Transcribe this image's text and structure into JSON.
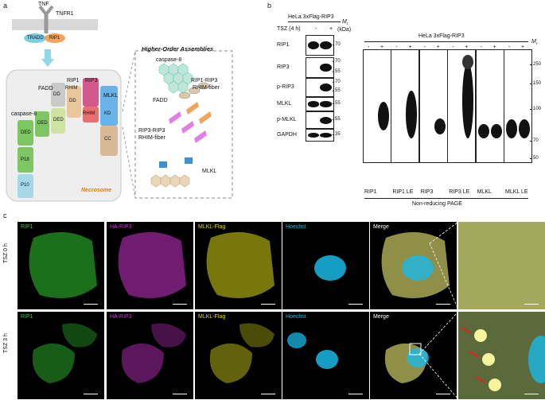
{
  "panels": {
    "a": "a",
    "b": "b",
    "c": "c"
  },
  "panel_a": {
    "top": {
      "tnf": "TNF",
      "tnfr1": "TNFR1",
      "tradd": "TRADD",
      "rip1": "RIP1"
    },
    "necrosome": {
      "fadd": "FADD",
      "rip1": "RIP1",
      "rip3": "RIP3",
      "mlkl": "MLKL",
      "caspase8": "caspase-8",
      "ded": "DED",
      "p18": "P18",
      "p10": "P10",
      "dd": "DD",
      "rhim": "RHIM",
      "kd": "KD",
      "cc": "CC",
      "title": "Necrosome"
    },
    "assemblies": {
      "title": "Higher-Order Assemblies",
      "caspase8": "caspase-8",
      "fadd": "FADD",
      "rip1_rip3": "RIP1-RIP3",
      "rhim_fiber1": "RHIM-fiber",
      "rip3_rip3": "RIP3-RIP3",
      "rhim_fiber2": "RHIM-fiber",
      "mlkl": "MLKL"
    }
  },
  "panel_b": {
    "left_title": "HeLa 3xFlag-RIP3",
    "right_title": "HeLa 3xFlag-RIP3",
    "tsz": "TSZ (4 h)",
    "minus": "-",
    "plus": "+",
    "mr": "M",
    "mr_sub": "r",
    "kda": "(kDa)",
    "left_blots": [
      {
        "label": "RIP1",
        "markers": [
          "70"
        ]
      },
      {
        "label": "RIP3",
        "markers": [
          "70",
          "55"
        ]
      },
      {
        "label": "p-RIP3",
        "markers": [
          "70",
          "55"
        ]
      },
      {
        "label": "MLKL",
        "markers": [
          "55"
        ]
      },
      {
        "label": "p-MLKL",
        "markers": [
          "55"
        ]
      },
      {
        "label": "GAPDH",
        "markers": [
          "35"
        ]
      }
    ],
    "right_markers": [
      "250",
      "150",
      "100",
      "70",
      "50"
    ],
    "lanes_bottom": [
      "RIP1",
      "RIP1 LE",
      "RIP3",
      "RIP3 LE",
      "MLKL",
      "MLKL LE"
    ],
    "nonreducing": "Non-reducing PAGE"
  },
  "panel_c": {
    "rows": [
      "TSZ 0 h",
      "TSZ 3 h"
    ],
    "channels": [
      "RIP1",
      "HA-RIP3",
      "MLKL-Flag",
      "Hoechst",
      "Merge"
    ],
    "colors": {
      "rip1": "#33cc33",
      "ha_rip3": "#cc33cc",
      "mlkl": "#d9d91a",
      "hoechst": "#1ab8e6"
    }
  }
}
